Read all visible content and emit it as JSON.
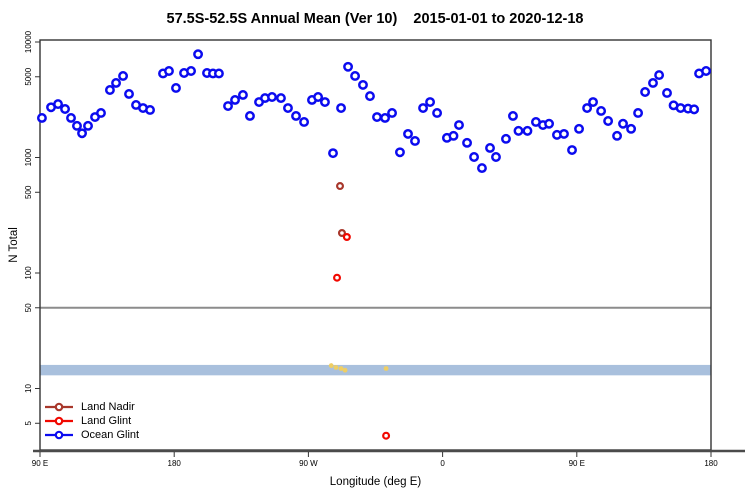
{
  "title": "57.5S-52.5S Annual Mean (Ver 10)    2015-01-01 to 2020-12-18",
  "legend": {
    "items": [
      {
        "label": "Land Nadir",
        "color": "#A8372B"
      },
      {
        "label": "Land Glint",
        "color": "#F10800"
      },
      {
        "label": "Ocean Glint",
        "color": "#0B0BEF"
      }
    ]
  },
  "chart_data": {
    "type": "scatter",
    "title": "57.5S-52.5S Annual Mean (Ver 10)    2015-01-01 to 2020-12-18",
    "xlabel": "Longitude (deg E)",
    "ylabel": "N Total",
    "grid": false,
    "legend_position": "bottom-left-inside",
    "x_axis": {
      "range_deg": [
        90,
        540
      ],
      "ticks": [
        {
          "deg": 90,
          "label": "90 E"
        },
        {
          "deg": 180,
          "label": "180"
        },
        {
          "deg": 270,
          "label": "90 W"
        },
        {
          "deg": 360,
          "label": "0"
        },
        {
          "deg": 450,
          "label": "90 E"
        },
        {
          "deg": 540,
          "label": "180"
        }
      ]
    },
    "y_axis": {
      "scale": "log",
      "range": [
        2.9,
        10500
      ],
      "ticks": [
        {
          "v": 10000,
          "label": "10000"
        },
        {
          "v": 5000,
          "label": "5000"
        },
        {
          "v": 1000,
          "label": "1000"
        },
        {
          "v": 500,
          "label": "500"
        },
        {
          "v": 100,
          "label": "100"
        },
        {
          "v": 50,
          "label": "50"
        },
        {
          "v": 10,
          "label": "10"
        },
        {
          "v": 5,
          "label": "5"
        }
      ]
    },
    "ref_line": {
      "value": 50,
      "color": "#8C8C8C"
    },
    "band": {
      "from": 13,
      "to": 16,
      "color": "#A9C0DD"
    },
    "series": [
      {
        "name": "Ocean Glint",
        "marker": "open-circle",
        "color": "#0B0BEF",
        "points": [
          [
            91.3,
            2200
          ],
          [
            97.4,
            2720
          ],
          [
            102.1,
            2900
          ],
          [
            106.8,
            2630
          ],
          [
            110.8,
            2200
          ],
          [
            114.8,
            1880
          ],
          [
            118.2,
            1620
          ],
          [
            122.2,
            1880
          ],
          [
            126.9,
            2240
          ],
          [
            130.9,
            2430
          ],
          [
            136.9,
            3840
          ],
          [
            141.0,
            4420
          ],
          [
            145.7,
            5080
          ],
          [
            149.7,
            3550
          ],
          [
            154.4,
            2850
          ],
          [
            159.1,
            2680
          ],
          [
            163.8,
            2580
          ],
          [
            172.5,
            5340
          ],
          [
            176.5,
            5610
          ],
          [
            181.2,
            4000
          ],
          [
            186.6,
            5390
          ],
          [
            191.3,
            5610
          ],
          [
            196.0,
            7840
          ],
          [
            202.0,
            5390
          ],
          [
            206.0,
            5340
          ],
          [
            210.0,
            5340
          ],
          [
            216.1,
            2790
          ],
          [
            220.8,
            3150
          ],
          [
            226.1,
            3480
          ],
          [
            230.8,
            2290
          ],
          [
            236.9,
            3020
          ],
          [
            240.9,
            3270
          ],
          [
            245.6,
            3340
          ],
          [
            251.6,
            3270
          ],
          [
            256.3,
            2680
          ],
          [
            261.7,
            2290
          ],
          [
            267.1,
            2030
          ],
          [
            272.4,
            3150
          ],
          [
            276.5,
            3340
          ],
          [
            281.1,
            3020
          ],
          [
            286.5,
            1090
          ],
          [
            291.9,
            2680
          ],
          [
            296.6,
            6100
          ],
          [
            301.3,
            5080
          ],
          [
            306.6,
            4250
          ],
          [
            311.3,
            3400
          ],
          [
            316.0,
            2240
          ],
          [
            321.4,
            2200
          ],
          [
            326.1,
            2430
          ],
          [
            331.4,
            1110
          ],
          [
            336.8,
            1600
          ],
          [
            341.5,
            1390
          ],
          [
            346.9,
            2680
          ],
          [
            351.6,
            3020
          ],
          [
            356.3,
            2430
          ],
          [
            362.9,
            1480
          ],
          [
            367.3,
            1540
          ],
          [
            371.0,
            1910
          ],
          [
            376.4,
            1340
          ],
          [
            381.1,
            1010
          ],
          [
            386.4,
            810
          ],
          [
            391.8,
            1210
          ],
          [
            395.8,
            1010
          ],
          [
            402.5,
            1450
          ],
          [
            407.2,
            2290
          ],
          [
            410.9,
            1700
          ],
          [
            416.9,
            1700
          ],
          [
            422.6,
            2030
          ],
          [
            427.3,
            1910
          ],
          [
            431.4,
            1960
          ],
          [
            436.7,
            1570
          ],
          [
            441.4,
            1600
          ],
          [
            446.8,
            1160
          ],
          [
            451.5,
            1770
          ],
          [
            456.9,
            2680
          ],
          [
            460.9,
            3020
          ],
          [
            466.3,
            2530
          ],
          [
            471.0,
            2070
          ],
          [
            477.0,
            1540
          ],
          [
            481.0,
            1960
          ],
          [
            486.4,
            1770
          ],
          [
            491.1,
            2430
          ],
          [
            495.8,
            3690
          ],
          [
            501.1,
            4420
          ],
          [
            505.2,
            5170
          ],
          [
            510.5,
            3620
          ],
          [
            514.9,
            2830
          ],
          [
            519.6,
            2680
          ],
          [
            524.6,
            2650
          ],
          [
            528.7,
            2610
          ],
          [
            532.0,
            5340
          ],
          [
            536.7,
            5610
          ]
        ]
      },
      {
        "name": "Land Nadir",
        "marker": "open-circle",
        "color": "#A8372B",
        "points": [
          [
            291.2,
            566
          ],
          [
            292.5,
            222
          ]
        ]
      },
      {
        "name": "Land Glint",
        "marker": "open-circle",
        "color": "#F10800",
        "points": [
          [
            295.8,
            205
          ],
          [
            289.2,
            91
          ],
          [
            322.1,
            3.9
          ]
        ]
      },
      {
        "name": "unlabeled-yellow-marks",
        "marker": "star",
        "color": "#EFCE63",
        "points": [
          [
            285.3,
            15.8
          ],
          [
            288.5,
            15.2
          ],
          [
            291.9,
            14.9
          ],
          [
            294.6,
            14.4
          ],
          [
            322.1,
            14.9
          ]
        ]
      }
    ]
  }
}
